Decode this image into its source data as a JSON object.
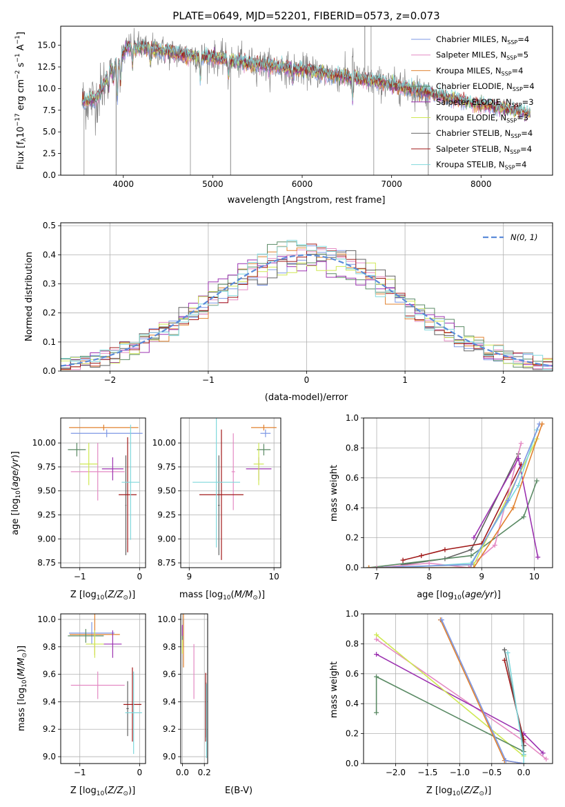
{
  "palette": {
    "chabrier_miles": "#7b96e4",
    "salpeter_miles": "#e489c3",
    "kroupa_miles": "#e0802e",
    "chabrier_elodie": "#5a8a64",
    "salpeter_elodie": "#9b31b0",
    "kroupa_elodie": "#cfe852",
    "chabrier_stelib": "#606060",
    "salpeter_stelib": "#a01818",
    "kroupa_stelib": "#7fd8dc",
    "data": "#808080",
    "normal": "#5b8bd9"
  },
  "chart_data": [
    {
      "id": "spectrum",
      "type": "line",
      "title": "PLATE=0649, MJD=52201, FIBERID=0573, z=0.073",
      "xlabel": "wavelength [Angstrom, rest frame]",
      "ylabel": "Flux [f_λ10^-17 erg cm^-2 s^-1 A^-1]",
      "xlim": [
        3300,
        8800
      ],
      "ylim": [
        0,
        17.2
      ],
      "xticks": [
        4000,
        5000,
        6000,
        7000,
        8000
      ],
      "yticks": [
        0.0,
        2.5,
        5.0,
        7.5,
        10.0,
        12.5,
        15.0
      ],
      "ytick_labels": [
        "0.0",
        "2.5",
        "5.0",
        "7.5",
        "10.0",
        "12.5",
        "15.0"
      ],
      "legend_placement": "upper-right",
      "series": [
        {
          "name": "Chabrier MILES, N_SSP=4",
          "color": "#7b96e4"
        },
        {
          "name": "Salpeter MILES, N_SSP=5",
          "color": "#e489c3"
        },
        {
          "name": "Kroupa MILES, N_SSP=4",
          "color": "#e0802e"
        },
        {
          "name": "Chabrier ELODIE, N_SSP=4",
          "color": "#5a8a64"
        },
        {
          "name": "Salpeter ELODIE, N_SSP=3",
          "color": "#9b31b0"
        },
        {
          "name": "Kroupa ELODIE, N_SSP=3",
          "color": "#cfe852"
        },
        {
          "name": "Chabrier STELIB, N_SSP=4",
          "color": "#606060"
        },
        {
          "name": "Salpeter STELIB, N_SSP=4",
          "color": "#a01818"
        },
        {
          "name": "Kroupa STELIB, N_SSP=4",
          "color": "#7fd8dc"
        }
      ],
      "continuum_x": [
        3550,
        3700,
        3850,
        3950,
        4050,
        4200,
        4400,
        4600,
        4800,
        5000,
        5200,
        5500,
        5800,
        6100,
        6400,
        6700,
        7000,
        7300,
        7600,
        7900,
        8200,
        8500
      ],
      "continuum_y": [
        8.5,
        8.8,
        12.0,
        13.2,
        14.8,
        14.7,
        14.4,
        14.0,
        13.8,
        13.6,
        13.2,
        12.8,
        12.4,
        12.0,
        11.5,
        11.0,
        10.4,
        9.8,
        9.0,
        8.3,
        7.8,
        7.2
      ]
    },
    {
      "id": "residuals",
      "type": "line",
      "xlabel": "(data-model)/error",
      "ylabel": "Normed distribution",
      "xlim": [
        -2.5,
        2.5
      ],
      "ylim": [
        0,
        0.51
      ],
      "xticks": [
        -2,
        -1,
        0,
        1,
        2
      ],
      "xtick_labels": [
        "−2",
        "−1",
        "0",
        "1",
        "2"
      ],
      "yticks": [
        0.0,
        0.1,
        0.2,
        0.3,
        0.4,
        0.5
      ],
      "ytick_labels": [
        "0.0",
        "0.1",
        "0.2",
        "0.3",
        "0.4",
        "0.5"
      ],
      "legend": [
        {
          "name": "N(0, 1)",
          "style": "dashed"
        }
      ],
      "legend_placement": "upper-right",
      "bin_width": 0.1
    },
    {
      "id": "age_vs_Z",
      "type": "scatter",
      "xlabel": "Z [log10(Z/Z⊙)]",
      "ylabel": "age [log10(age/yr)]",
      "xlim": [
        -1.32,
        0.1
      ],
      "ylim": [
        8.7,
        10.26
      ],
      "xticks": [
        -1,
        0
      ],
      "xtick_labels": [
        "−1",
        "0"
      ],
      "yticks": [
        8.75,
        9.0,
        9.25,
        9.5,
        9.75,
        10.0
      ],
      "ytick_labels": [
        "8.75",
        "9.00",
        "9.25",
        "9.50",
        "9.75",
        "10.00"
      ],
      "points": [
        {
          "c": "#7b96e4",
          "x": -0.55,
          "xe": 0.6,
          "y": 10.1,
          "ye": 0.04
        },
        {
          "c": "#e489c3",
          "x": -0.7,
          "xe": 0.45,
          "y": 9.7,
          "ye": 0.3
        },
        {
          "c": "#e0802e",
          "x": -0.6,
          "xe": 0.58,
          "y": 10.16,
          "ye": 0.03
        },
        {
          "c": "#5a8a64",
          "x": -1.05,
          "xe": 0.15,
          "y": 9.93,
          "ye": 0.07
        },
        {
          "c": "#9b31b0",
          "x": -0.45,
          "xe": 0.18,
          "y": 9.73,
          "ye": 0.12
        },
        {
          "c": "#cfe852",
          "x": -0.85,
          "xe": 0.15,
          "y": 9.78,
          "ye": 0.22
        },
        {
          "c": "#606060",
          "x": -0.23,
          "xe": 0.01,
          "y": 9.35,
          "ye": 0.52
        },
        {
          "c": "#a01818",
          "x": -0.2,
          "xe": 0.15,
          "y": 9.46,
          "ye": 0.6
        },
        {
          "c": "#7fd8dc",
          "x": -0.15,
          "xe": 0.15,
          "y": 9.59,
          "ye": 0.6
        }
      ]
    },
    {
      "id": "age_vs_mass",
      "type": "scatter",
      "xlabel": "mass [log10(M/M⊙)]",
      "xlim": [
        8.9,
        10.08
      ],
      "ylim": [
        8.7,
        10.26
      ],
      "xticks": [
        9,
        10
      ],
      "xtick_labels": [
        "9",
        "10"
      ],
      "yticks": [
        8.75,
        9.0,
        9.25,
        9.5,
        9.75,
        10.0
      ],
      "ytick_labels": [
        "8.75",
        "9.00",
        "9.25",
        "9.50",
        "9.75",
        "10.00"
      ],
      "points": [
        {
          "c": "#7b96e4",
          "x": 9.9,
          "xe": 0.06,
          "y": 10.1,
          "ye": 0.04
        },
        {
          "c": "#e489c3",
          "x": 9.52,
          "xe": 0.02,
          "y": 9.7,
          "ye": 0.4
        },
        {
          "c": "#e0802e",
          "x": 9.88,
          "xe": 0.15,
          "y": 10.16,
          "ye": 0.03
        },
        {
          "c": "#5a8a64",
          "x": 9.88,
          "xe": 0.08,
          "y": 9.93,
          "ye": 0.06
        },
        {
          "c": "#9b31b0",
          "x": 9.82,
          "xe": 0.15,
          "y": 9.73,
          "ye": 0.12
        },
        {
          "c": "#cfe852",
          "x": 9.82,
          "xe": 0.06,
          "y": 9.78,
          "ye": 0.22
        },
        {
          "c": "#606060",
          "x": 9.35,
          "xe": 0.01,
          "y": 9.35,
          "ye": 0.52
        },
        {
          "c": "#a01818",
          "x": 9.38,
          "xe": 0.26,
          "y": 9.46,
          "ye": 0.68
        },
        {
          "c": "#7fd8dc",
          "x": 9.32,
          "xe": 0.28,
          "y": 9.59,
          "ye": 0.68
        }
      ]
    },
    {
      "id": "massweight_vs_age",
      "type": "line",
      "xlabel": "age [log10(age/yr)]",
      "ylabel": "mass weight",
      "xlim": [
        6.75,
        10.35
      ],
      "ylim": [
        0,
        1.0
      ],
      "xticks": [
        7,
        8,
        9,
        10
      ],
      "yticks": [
        0.0,
        0.2,
        0.4,
        0.6,
        0.8,
        1.0
      ],
      "ytick_labels": [
        "0.0",
        "0.2",
        "0.4",
        "0.6",
        "0.8",
        "1.0"
      ],
      "series": [
        {
          "c": "#606060",
          "x": [
            7.5,
            8.3,
            8.8,
            9.7
          ],
          "y": [
            0.02,
            0.06,
            0.12,
            0.76
          ]
        },
        {
          "c": "#a01818",
          "x": [
            7.5,
            7.85,
            8.3,
            9.0,
            9.75
          ],
          "y": [
            0.05,
            0.08,
            0.12,
            0.16,
            0.69
          ]
        },
        {
          "c": "#5a8a64",
          "x": [
            6.85,
            8.8,
            9.8,
            10.05
          ],
          "y": [
            0.0,
            0.08,
            0.34,
            0.58
          ]
        },
        {
          "c": "#e489c3",
          "x": [
            7.0,
            8.0,
            8.75,
            9.25,
            9.75
          ],
          "y": [
            0.0,
            0.03,
            0.0,
            0.15,
            0.83
          ]
        },
        {
          "c": "#9b31b0",
          "x": [
            8.85,
            9.7,
            10.07
          ],
          "y": [
            0.2,
            0.73,
            0.07
          ]
        },
        {
          "c": "#cfe852",
          "x": [
            6.85,
            8.85,
            10.05
          ],
          "y": [
            0.0,
            0.02,
            0.86
          ]
        },
        {
          "c": "#7fd8dc",
          "x": [
            7.5,
            8.8,
            9.7,
            10.05
          ],
          "y": [
            0.0,
            0.03,
            0.55,
            0.92
          ]
        },
        {
          "c": "#7b96e4",
          "x": [
            6.85,
            8.8,
            9.5,
            10.1
          ],
          "y": [
            0.0,
            0.02,
            0.45,
            0.96
          ]
        },
        {
          "c": "#e0802e",
          "x": [
            6.85,
            8.85,
            9.6,
            10.15
          ],
          "y": [
            0.0,
            0.0,
            0.4,
            0.96
          ]
        }
      ]
    },
    {
      "id": "mass_vs_Z",
      "type": "scatter",
      "xlabel": "Z [log10(Z/Z⊙)]",
      "ylabel": "mass [log10(M/M⊙)]",
      "xlim": [
        -1.32,
        0.1
      ],
      "ylim": [
        8.95,
        10.04
      ],
      "xticks": [
        -1,
        0
      ],
      "xtick_labels": [
        "−1",
        "0"
      ],
      "yticks": [
        9.0,
        9.2,
        9.4,
        9.6,
        9.8,
        10.0
      ],
      "ytick_labels": [
        "9.0",
        "9.2",
        "9.4",
        "9.6",
        "9.8",
        "10.0"
      ],
      "points": [
        {
          "c": "#7b96e4",
          "x": -0.8,
          "xe": 0.38,
          "y": 9.9,
          "ye": 0.08
        },
        {
          "c": "#e489c3",
          "x": -0.7,
          "xe": 0.45,
          "y": 9.52,
          "ye": 0.1
        },
        {
          "c": "#e0802e",
          "x": -0.75,
          "xe": 0.42,
          "y": 9.89,
          "ye": 0.15
        },
        {
          "c": "#5a8a64",
          "x": -0.9,
          "xe": 0.3,
          "y": 9.88,
          "ye": 0.05
        },
        {
          "c": "#9b31b0",
          "x": -0.45,
          "xe": 0.15,
          "y": 9.82,
          "ye": 0.1
        },
        {
          "c": "#cfe852",
          "x": -0.75,
          "xe": 0.15,
          "y": 9.82,
          "ye": 0.1
        },
        {
          "c": "#606060",
          "x": -0.2,
          "xe": 0.02,
          "y": 9.35,
          "ye": 0.2
        },
        {
          "c": "#a01818",
          "x": -0.12,
          "xe": 0.15,
          "y": 9.38,
          "ye": 0.27
        },
        {
          "c": "#7fd8dc",
          "x": -0.1,
          "xe": 0.14,
          "y": 9.32,
          "ye": 0.3
        }
      ]
    },
    {
      "id": "mass_vs_EBV",
      "type": "scatter",
      "xlabel": "E(B-V)",
      "xlim": [
        -0.015,
        0.23
      ],
      "ylim": [
        8.95,
        10.04
      ],
      "xticks": [
        0.0,
        0.2
      ],
      "xtick_labels": [
        "0.0",
        "0.2"
      ],
      "yticks": [
        9.0,
        9.2,
        9.4,
        9.6,
        9.8,
        10.0
      ],
      "ytick_labels": [
        "9.0",
        "9.2",
        "9.4",
        "9.6",
        "9.8",
        "10.0"
      ],
      "points": [
        {
          "c": "#7b96e4",
          "x": 0.01,
          "xe": 0.0,
          "y": 9.9,
          "ye": 0.1
        },
        {
          "c": "#e489c3",
          "x": 0.105,
          "xe": 0.0,
          "y": 9.62,
          "ye": 0.2
        },
        {
          "c": "#e0802e",
          "x": 0.01,
          "xe": 0.0,
          "y": 9.85,
          "ye": 0.2
        },
        {
          "c": "#5a8a64",
          "x": 0.0,
          "xe": 0.0,
          "y": 9.9,
          "ye": 0.05
        },
        {
          "c": "#9b31b0",
          "x": 0.0,
          "xe": 0.0,
          "y": 9.92,
          "ye": 0.04
        },
        {
          "c": "#cfe852",
          "x": 0.0,
          "xe": 0.0,
          "y": 9.8,
          "ye": 0.05
        },
        {
          "c": "#606060",
          "x": 0.215,
          "xe": 0.0,
          "y": 9.34,
          "ye": 0.2
        },
        {
          "c": "#a01818",
          "x": 0.212,
          "xe": 0.0,
          "y": 9.36,
          "ye": 0.25
        },
        {
          "c": "#7fd8dc",
          "x": 0.22,
          "xe": 0.0,
          "y": 9.26,
          "ye": 0.27
        }
      ]
    },
    {
      "id": "massweight_vs_Z",
      "type": "line",
      "xlabel": "Z [log10(Z/Z⊙)]",
      "ylabel": "mass weight",
      "xlim": [
        -2.5,
        0.45
      ],
      "ylim": [
        0,
        1.0
      ],
      "xticks": [
        -2.0,
        -1.5,
        -1.0,
        -0.5,
        0.0
      ],
      "xtick_labels": [
        "−2.0",
        "−1.5",
        "−1.0",
        "−0.5",
        "0.0"
      ],
      "yticks": [
        0.0,
        0.2,
        0.4,
        0.6,
        0.8,
        1.0
      ],
      "ytick_labels": [
        "0.0",
        "0.2",
        "0.4",
        "0.6",
        "0.8",
        "1.0"
      ],
      "series": [
        {
          "c": "#e489c3",
          "x": [
            -2.3,
            0.0,
            0.35
          ],
          "y": [
            0.83,
            0.15,
            0.03
          ]
        },
        {
          "c": "#9b31b0",
          "x": [
            -2.3,
            0.0,
            0.3
          ],
          "y": [
            0.73,
            0.2,
            0.07
          ]
        },
        {
          "c": "#cfe852",
          "x": [
            -2.3,
            0.0
          ],
          "y": [
            0.86,
            0.05
          ]
        },
        {
          "c": "#5a8a64",
          "x": [
            -2.3,
            -2.3,
            0.0
          ],
          "y": [
            0.34,
            0.58,
            0.08
          ]
        },
        {
          "c": "#e0802e",
          "x": [
            -1.3,
            -0.3,
            0.0
          ],
          "y": [
            0.96,
            0.02,
            0.0
          ]
        },
        {
          "c": "#7b96e4",
          "x": [
            -1.28,
            -0.28,
            0.0
          ],
          "y": [
            0.96,
            0.02,
            0.0
          ]
        },
        {
          "c": "#a01818",
          "x": [
            -0.3,
            0.0,
            0.0
          ],
          "y": [
            0.69,
            0.16,
            0.12
          ]
        },
        {
          "c": "#606060",
          "x": [
            -0.3,
            0.0,
            0.0
          ],
          "y": [
            0.76,
            0.12,
            0.06
          ]
        },
        {
          "c": "#7fd8dc",
          "x": [
            -0.25,
            0.0,
            0.0
          ],
          "y": [
            0.74,
            0.06,
            0.0
          ]
        }
      ]
    }
  ]
}
